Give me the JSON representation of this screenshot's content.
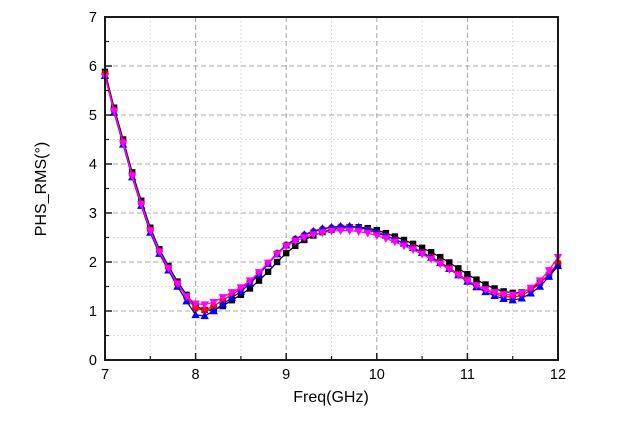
{
  "figure": {
    "background": "#ffffff",
    "frame_color": "#1a1a1a",
    "grid_major_color": "#a9a9a9",
    "grid_minor_color": "#d2d2d2",
    "tick_color": "#1a1a1a",
    "text_color": "#000000"
  },
  "chart_data": {
    "type": "line",
    "title": "",
    "xlabel": "Freq(GHz)",
    "ylabel": "PHS_RMS(°)",
    "xlim": [
      7,
      12
    ],
    "ylim": [
      0,
      7
    ],
    "x_major_ticks": [
      7,
      8,
      9,
      10,
      11,
      12
    ],
    "y_major_ticks": [
      0,
      1,
      2,
      3,
      4,
      5,
      6,
      7
    ],
    "x_minor_ticks": [
      7.5,
      8.5,
      9.5,
      10.5,
      11.5
    ],
    "y_minor_ticks": [
      0.5,
      1.5,
      2.5,
      3.5,
      4.5,
      5.5,
      6.5
    ],
    "grid": "major and minor, dashed, on",
    "legend_position": "none",
    "x": [
      7.0,
      7.1,
      7.2,
      7.3,
      7.4,
      7.5,
      7.6,
      7.7,
      7.8,
      7.9,
      8.0,
      8.1,
      8.2,
      8.3,
      8.4,
      8.5,
      8.6,
      8.7,
      8.8,
      8.9,
      9.0,
      9.1,
      9.2,
      9.3,
      9.4,
      9.5,
      9.6,
      9.7,
      9.8,
      9.9,
      10.0,
      10.1,
      10.2,
      10.3,
      10.4,
      10.5,
      10.6,
      10.7,
      10.8,
      10.9,
      11.0,
      11.1,
      11.2,
      11.3,
      11.4,
      11.5,
      11.6,
      11.7,
      11.8,
      11.9,
      12.0
    ],
    "series": [
      {
        "name": "series-black-squares",
        "marker": "square",
        "color": "#000000",
        "values": [
          5.88,
          5.15,
          4.5,
          3.83,
          3.25,
          2.7,
          2.26,
          1.92,
          1.6,
          1.33,
          1.1,
          1.02,
          1.02,
          1.1,
          1.22,
          1.33,
          1.46,
          1.62,
          1.8,
          2.0,
          2.18,
          2.33,
          2.45,
          2.54,
          2.61,
          2.66,
          2.69,
          2.71,
          2.71,
          2.69,
          2.65,
          2.59,
          2.52,
          2.45,
          2.37,
          2.29,
          2.2,
          2.1,
          1.99,
          1.87,
          1.75,
          1.64,
          1.54,
          1.46,
          1.4,
          1.37,
          1.38,
          1.46,
          1.58,
          1.74,
          1.96
        ]
      },
      {
        "name": "series-red-circles",
        "marker": "circle",
        "color": "#ff0000",
        "values": [
          5.85,
          5.1,
          4.45,
          3.78,
          3.2,
          2.65,
          2.22,
          1.88,
          1.55,
          1.28,
          1.05,
          1.02,
          1.1,
          1.22,
          1.33,
          1.45,
          1.6,
          1.78,
          1.98,
          2.18,
          2.35,
          2.47,
          2.55,
          2.62,
          2.67,
          2.7,
          2.72,
          2.72,
          2.7,
          2.66,
          2.6,
          2.53,
          2.46,
          2.38,
          2.3,
          2.2,
          2.1,
          2.0,
          1.88,
          1.75,
          1.63,
          1.52,
          1.43,
          1.35,
          1.3,
          1.28,
          1.32,
          1.42,
          1.56,
          1.75,
          1.98
        ]
      },
      {
        "name": "series-blue-triangles-up",
        "marker": "triangle-up",
        "color": "#0000ff",
        "values": [
          5.8,
          5.05,
          4.4,
          3.73,
          3.15,
          2.6,
          2.17,
          1.83,
          1.5,
          1.2,
          0.92,
          0.9,
          1.0,
          1.14,
          1.27,
          1.4,
          1.56,
          1.75,
          1.96,
          2.16,
          2.34,
          2.47,
          2.56,
          2.63,
          2.68,
          2.71,
          2.73,
          2.73,
          2.71,
          2.67,
          2.61,
          2.54,
          2.46,
          2.38,
          2.29,
          2.19,
          2.09,
          1.98,
          1.86,
          1.73,
          1.6,
          1.49,
          1.39,
          1.31,
          1.25,
          1.22,
          1.26,
          1.36,
          1.5,
          1.7,
          1.92
        ]
      },
      {
        "name": "series-magenta-triangles-down",
        "marker": "triangle-down",
        "color": "#ff00ff",
        "values": [
          5.78,
          5.08,
          4.43,
          3.76,
          3.18,
          2.64,
          2.21,
          1.87,
          1.56,
          1.3,
          1.15,
          1.13,
          1.18,
          1.28,
          1.38,
          1.48,
          1.62,
          1.79,
          1.98,
          2.16,
          2.32,
          2.43,
          2.5,
          2.56,
          2.6,
          2.63,
          2.64,
          2.64,
          2.62,
          2.59,
          2.54,
          2.48,
          2.41,
          2.33,
          2.25,
          2.16,
          2.06,
          1.96,
          1.85,
          1.73,
          1.62,
          1.52,
          1.44,
          1.38,
          1.34,
          1.33,
          1.37,
          1.47,
          1.62,
          1.83,
          2.1
        ]
      }
    ]
  }
}
